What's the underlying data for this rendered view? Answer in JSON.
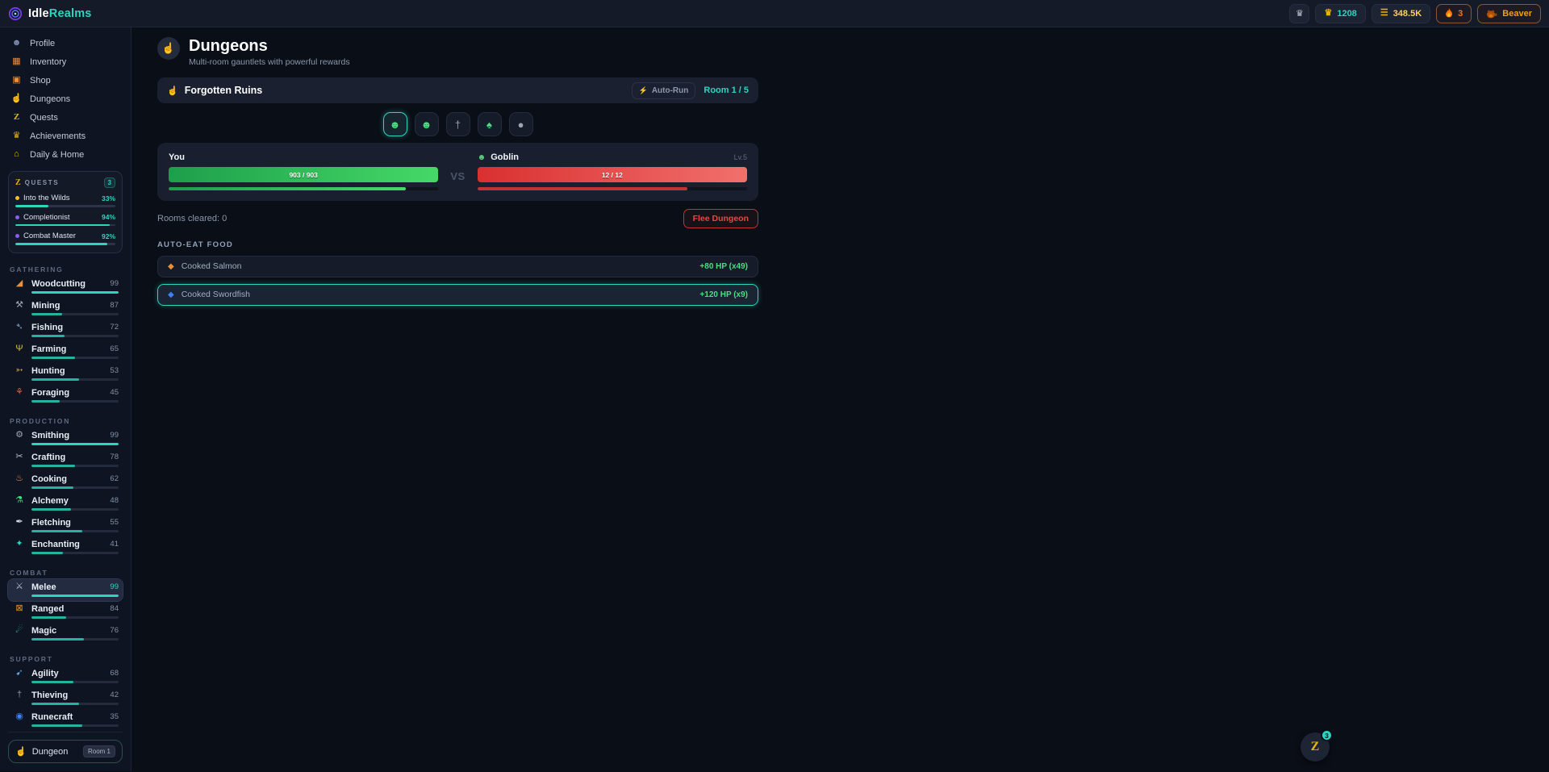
{
  "app": {
    "brand_idle": "Idle",
    "brand_realms": "Realms"
  },
  "header": {
    "hiscores_icon": "♛",
    "trophies": {
      "icon": "♛",
      "value": "1208"
    },
    "gold": {
      "icon": "☰",
      "value": "348.5K"
    },
    "streak": {
      "value": "3"
    },
    "player": {
      "value": "Beaver"
    }
  },
  "sidebar": {
    "nav": [
      {
        "label": "Profile",
        "icon": "☻",
        "icon_color": "#7c8db0"
      },
      {
        "label": "Inventory",
        "icon": "▦",
        "icon_color": "#e8913a"
      },
      {
        "label": "Shop",
        "icon": "▣",
        "icon_color": "#e8913a"
      },
      {
        "label": "Dungeons",
        "icon": "☝",
        "icon_color": "#d5dbe5"
      },
      {
        "label": "Quests",
        "icon": "Z",
        "icon_color": "#eab308"
      },
      {
        "label": "Achievements",
        "icon": "♛",
        "icon_color": "#eab308"
      },
      {
        "label": "Daily & Home",
        "icon": "⌂",
        "icon_color": "#eab308"
      }
    ],
    "quests_panel": {
      "icon": "Z",
      "title": "QUESTS",
      "badge": "3",
      "items": [
        {
          "name": "Into the Wilds",
          "pct": "33%",
          "progress": 33,
          "dot_color": "#fbbf24"
        },
        {
          "name": "Completionist",
          "pct": "94%",
          "progress": 94,
          "dot_color": "#8b5cf6"
        },
        {
          "name": "Combat Master",
          "pct": "92%",
          "progress": 92,
          "dot_color": "#8b5cf6"
        }
      ]
    },
    "sections": [
      {
        "label": "GATHERING",
        "skills": [
          {
            "name": "Woodcutting",
            "level": "99",
            "progress": 100,
            "icon": "◢",
            "icon_color": "#e8913a"
          },
          {
            "name": "Mining",
            "level": "87",
            "progress": 35,
            "icon": "⚒",
            "icon_color": "#9aa6b8"
          },
          {
            "name": "Fishing",
            "level": "72",
            "progress": 38,
            "icon": "➴",
            "icon_color": "#7da2c4"
          },
          {
            "name": "Farming",
            "level": "65",
            "progress": 50,
            "icon": "Ψ",
            "icon_color": "#d4c24a"
          },
          {
            "name": "Hunting",
            "level": "53",
            "progress": 55,
            "icon": "➳",
            "icon_color": "#d4a24a"
          },
          {
            "name": "Foraging",
            "level": "45",
            "progress": 32,
            "icon": "⚘",
            "icon_color": "#e05d44"
          }
        ]
      },
      {
        "label": "PRODUCTION",
        "skills": [
          {
            "name": "Smithing",
            "level": "99",
            "progress": 100,
            "icon": "⚙",
            "icon_color": "#9aa6b8"
          },
          {
            "name": "Crafting",
            "level": "78",
            "progress": 50,
            "icon": "✂",
            "icon_color": "#b8c2d0"
          },
          {
            "name": "Cooking",
            "level": "62",
            "progress": 48,
            "icon": "♨",
            "icon_color": "#e8913a"
          },
          {
            "name": "Alchemy",
            "level": "48",
            "progress": 45,
            "icon": "⚗",
            "icon_color": "#4ade80"
          },
          {
            "name": "Fletching",
            "level": "55",
            "progress": 58,
            "icon": "✒",
            "icon_color": "#d5dbe5"
          },
          {
            "name": "Enchanting",
            "level": "41",
            "progress": 36,
            "icon": "✦",
            "icon_color": "#2dd4bf"
          }
        ]
      },
      {
        "label": "COMBAT",
        "skills": [
          {
            "name": "Melee",
            "level": "99",
            "progress": 100,
            "icon": "⚔",
            "icon_color": "#b8c2d0"
          },
          {
            "name": "Ranged",
            "level": "84",
            "progress": 40,
            "icon": "⊠",
            "icon_color": "#e8913a"
          },
          {
            "name": "Magic",
            "level": "76",
            "progress": 60,
            "icon": "☄",
            "icon_color": "#2dd4bf"
          }
        ]
      },
      {
        "label": "SUPPORT",
        "skills": [
          {
            "name": "Agility",
            "level": "68",
            "progress": 48,
            "icon": "➹",
            "icon_color": "#60a5fa"
          },
          {
            "name": "Thieving",
            "level": "42",
            "progress": 55,
            "icon": "†",
            "icon_color": "#8b98ab"
          },
          {
            "name": "Runecraft",
            "level": "35",
            "progress": 58,
            "icon": "◉",
            "icon_color": "#3b82f6"
          }
        ]
      }
    ],
    "footer": {
      "icon": "☝",
      "label": "Dungeon",
      "badge": "Room 1"
    }
  },
  "main": {
    "page_icon": "☝",
    "page_title": "Dungeons",
    "page_subtitle": "Multi-room gauntlets with powerful rewards",
    "dungeon": {
      "icon": "☝",
      "name": "Forgotten Ruins",
      "auto_run_icon": "⚡",
      "auto_run_label": "Auto-Run",
      "room_label": "Room 1 / 5",
      "rooms": [
        {
          "icon": "☻",
          "color": "#4ade80"
        },
        {
          "icon": "☻",
          "color": "#4ade80"
        },
        {
          "icon": "†",
          "color": "#9aa6b8"
        },
        {
          "icon": "♠",
          "color": "#4ade80"
        },
        {
          "icon": "●",
          "color": "#9aa6b8"
        }
      ]
    },
    "combat": {
      "you": {
        "label": "You",
        "hp": "903 / 903",
        "hp_pct": 100,
        "timer_pct": 88
      },
      "vs": "VS",
      "enemy": {
        "icon": "☻",
        "icon_color": "#4ade80",
        "name": "Goblin",
        "level": "Lv.5",
        "hp": "12 / 12",
        "hp_pct": 100,
        "timer_pct": 78
      }
    },
    "rooms_cleared": "Rooms cleared: 0",
    "flee_label": "Flee Dungeon",
    "auto_eat": {
      "title": "AUTO-EAT FOOD",
      "items": [
        {
          "icon": "◆",
          "icon_color": "#e8913a",
          "name": "Cooked Salmon",
          "effect": "+80 HP (x49)"
        },
        {
          "icon": "◆",
          "icon_color": "#3b82f6",
          "name": "Cooked Swordfish",
          "effect": "+120 HP (x9)"
        }
      ]
    }
  },
  "floating_quests": {
    "icon": "Z",
    "badge": "3"
  },
  "colors": {
    "accent": "#2dd4bf",
    "hp_green": "#4ade80",
    "hp_red": "#ef4444",
    "gold": "#eab308",
    "orange": "#f59e0b"
  }
}
